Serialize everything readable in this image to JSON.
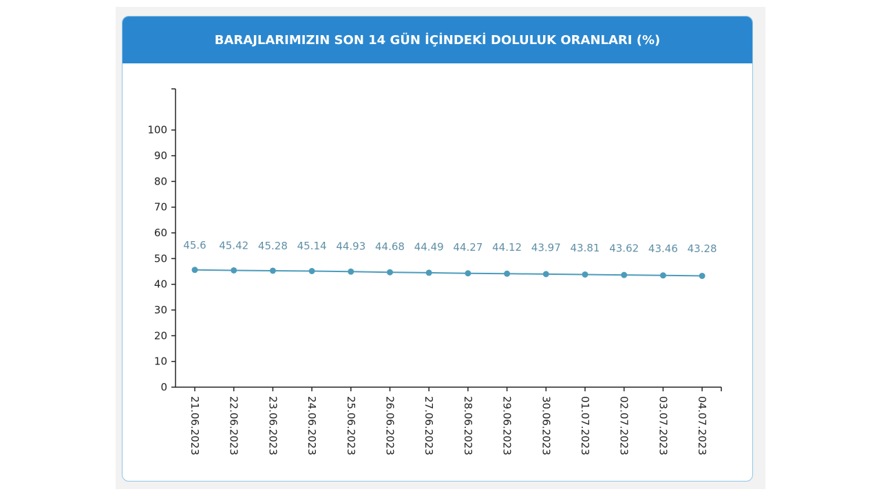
{
  "chart_data": {
    "type": "line",
    "title": "BARAJLARIMIZIN SON 14 GÜN İÇİNDEKİ DOLULUK ORANLARI (%)",
    "categories": [
      "21.06.2023",
      "22.06.2023",
      "23.06.2023",
      "24.06.2023",
      "25.06.2023",
      "26.06.2023",
      "27.06.2023",
      "28.06.2023",
      "29.06.2023",
      "30.06.2023",
      "01.07.2023",
      "02.07.2023",
      "03.07.2023",
      "04.07.2023"
    ],
    "values": [
      45.6,
      45.42,
      45.28,
      45.14,
      44.93,
      44.68,
      44.49,
      44.27,
      44.12,
      43.97,
      43.81,
      43.62,
      43.46,
      43.28
    ],
    "color": "#4d9bbb",
    "ylim": [
      0,
      116
    ],
    "yticks": [
      0,
      10,
      20,
      30,
      40,
      50,
      60,
      70,
      80,
      90,
      100
    ]
  }
}
